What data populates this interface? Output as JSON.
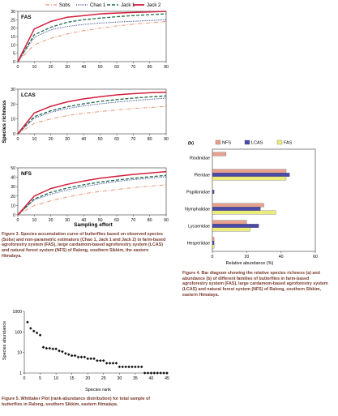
{
  "figure3": {
    "ylabel": "Species richness",
    "xlabel": "Sampling effort",
    "legend": [
      "Sobs",
      "Chao 1",
      "Jack 1",
      "Jack 2"
    ],
    "colors": {
      "Sobs": "#e8957a",
      "Chao 1": "#2c3e8f",
      "Jack 1": "#1f6b4a",
      "Jack 2": "#d21f3c"
    },
    "caption": "Figure 3. Species accumulation curve of butterflies based on observed species (Sobs) and non-parametric estimators (Chao 1, Jack 1 and Jack 2) in farm-based agroforestry system (FAS), large cardamom-based agroforestry system (LCAS) and natural forest system (NFS) of Ralong, southern Sikkim, the eastern Himalaya."
  },
  "figure4": {
    "panel_label": "(b)",
    "xlabel": "Relative abundance (%)",
    "caption": "Figure 4. Bar diagram showing the relative species richness (a) and abundance (b) of different families of butterflies in farm-based agroforestry system (FAS), large cardamom-based agroforestry system (LCAS) and natural forest system (NFS) of Ralong, southern Sikkim, eastern Himalaya."
  },
  "figure5": {
    "ylabel": "Species abundance",
    "xlabel": "Species rank",
    "caption": "Figure 5. Whittaker Plot (rank-abundance distribution) for total sample of butterflies in Ralong, southern Sikkim, eastern Himalaya."
  },
  "chart_data": [
    {
      "type": "line",
      "title": "FAS",
      "x": [
        0,
        10,
        20,
        30,
        40,
        50,
        60,
        70,
        80,
        90
      ],
      "xlim": [
        0,
        90
      ],
      "ylim": [
        0,
        30
      ],
      "yticks": [
        0,
        5,
        10,
        15,
        20,
        25,
        30
      ],
      "series": [
        {
          "name": "Sobs",
          "values": [
            0,
            10,
            14,
            16.5,
            18.5,
            20,
            21.3,
            22.3,
            23.2,
            24
          ]
        },
        {
          "name": "Chao 1",
          "values": [
            0,
            14.5,
            19,
            21,
            22.2,
            23,
            23.6,
            24.1,
            24.5,
            25
          ]
        },
        {
          "name": "Jack 1",
          "values": [
            0,
            16,
            20.5,
            23.5,
            25,
            26,
            26.8,
            27.5,
            28,
            28.5
          ]
        },
        {
          "name": "Jack 2",
          "values": [
            0,
            19.5,
            24,
            26.5,
            27.5,
            28.5,
            29,
            29.3,
            29.6,
            30
          ]
        }
      ]
    },
    {
      "type": "line",
      "title": "LCAS",
      "x": [
        0,
        10,
        20,
        30,
        40,
        50,
        60,
        70,
        80,
        90
      ],
      "xlim": [
        0,
        90
      ],
      "ylim": [
        0,
        30
      ],
      "yticks": [
        0,
        10,
        20,
        30
      ],
      "series": [
        {
          "name": "Sobs",
          "values": [
            0,
            7,
            10,
            12.2,
            13.8,
            15,
            16.1,
            17,
            17.7,
            18.5
          ]
        },
        {
          "name": "Chao 1",
          "values": [
            0,
            10.5,
            14.5,
            17,
            18.8,
            20.2,
            21.3,
            22.3,
            23.2,
            24
          ]
        },
        {
          "name": "Jack 1",
          "values": [
            0,
            11.5,
            15.5,
            18.2,
            20.2,
            21.8,
            23,
            24,
            24.8,
            25.5
          ]
        },
        {
          "name": "Jack 2",
          "values": [
            0,
            14,
            18.5,
            21.5,
            23.5,
            25,
            26.2,
            27,
            27.6,
            28
          ]
        }
      ]
    },
    {
      "type": "line",
      "title": "NFS",
      "x": [
        0,
        10,
        20,
        30,
        40,
        50,
        60,
        70,
        80,
        90
      ],
      "xlim": [
        0,
        90
      ],
      "ylim": [
        0,
        50
      ],
      "yticks": [
        0,
        10,
        20,
        30,
        40,
        50
      ],
      "series": [
        {
          "name": "Sobs",
          "values": [
            0,
            10,
            15,
            19,
            22.5,
            25,
            27,
            29,
            30.5,
            32
          ]
        },
        {
          "name": "Chao 1",
          "values": [
            0,
            16,
            22,
            26.5,
            30,
            33,
            35.5,
            37.5,
            39,
            40.5
          ]
        },
        {
          "name": "Jack 1",
          "values": [
            0,
            17,
            24,
            28.5,
            32,
            35,
            37,
            39,
            40.5,
            42
          ]
        },
        {
          "name": "Jack 2",
          "values": [
            0,
            20,
            28,
            32.5,
            36,
            39,
            41,
            43,
            44.5,
            46
          ]
        }
      ]
    },
    {
      "type": "bar",
      "orientation": "horizontal",
      "categories": [
        "Riodinidae",
        "Pieridae",
        "Papilionidae",
        "Nymphalidae",
        "Lycaenidae",
        "Hesperiidae"
      ],
      "series": [
        {
          "name": "NFS",
          "values": [
            8,
            43,
            0,
            30,
            20,
            1
          ]
        },
        {
          "name": "LCAS",
          "values": [
            0,
            45,
            1,
            28,
            27,
            1
          ]
        },
        {
          "name": "FAS",
          "values": [
            0,
            43,
            0,
            37,
            22,
            1
          ]
        }
      ],
      "colors": {
        "NFS": "#e8a08e",
        "LCAS": "#4a4aa8",
        "FAS": "#ecec7a"
      },
      "xlim": [
        0,
        60
      ],
      "xticks": [
        0,
        20,
        40,
        60
      ],
      "legend_position": "top"
    },
    {
      "type": "scatter",
      "x": [
        1,
        2,
        3,
        4,
        5,
        6,
        7,
        8,
        9,
        10,
        11,
        12,
        13,
        14,
        15,
        16,
        17,
        18,
        19,
        20,
        21,
        22,
        23,
        24,
        25,
        26,
        27,
        28,
        29,
        30,
        31,
        32,
        33,
        34,
        35,
        36,
        37,
        38,
        39,
        40,
        41,
        42,
        43,
        44,
        45
      ],
      "y": [
        300,
        150,
        110,
        90,
        70,
        18,
        16,
        16,
        15,
        15,
        12,
        11,
        9,
        8,
        7,
        7,
        6,
        6,
        6,
        5,
        5,
        5,
        4,
        4,
        4,
        3,
        3,
        3,
        3,
        2,
        2,
        2,
        2,
        2,
        2,
        2,
        2,
        1,
        1,
        1,
        1,
        1,
        1,
        1,
        1
      ],
      "xlim": [
        0,
        45
      ],
      "xticks": [
        0,
        5,
        10,
        15,
        20,
        25,
        30,
        35,
        40,
        45
      ],
      "ylim": [
        1,
        1000
      ],
      "yscale": "log",
      "yticks": [
        1,
        10,
        100,
        1000
      ]
    }
  ]
}
